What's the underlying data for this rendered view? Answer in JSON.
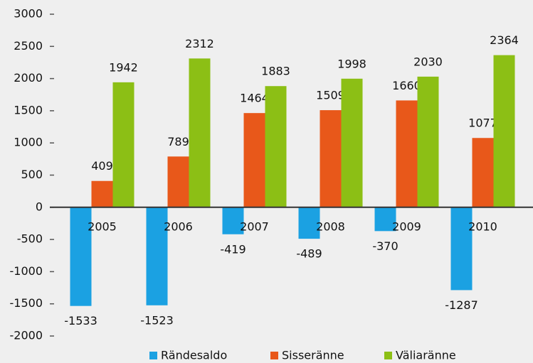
{
  "chart_data": {
    "type": "bar",
    "categories": [
      "2005",
      "2006",
      "2007",
      "2008",
      "2009",
      "2010"
    ],
    "series": [
      {
        "name": "Rändesaldo",
        "color": "#1ba1e2",
        "values": [
          -1533,
          -1523,
          -419,
          -489,
          -370,
          -1287
        ]
      },
      {
        "name": "Sisseränne",
        "color": "#e8581a",
        "values": [
          409,
          789,
          1464,
          1509,
          1660,
          1077
        ]
      },
      {
        "name": "Väliaränne",
        "color": "#8cbf15",
        "values": [
          1942,
          2312,
          1883,
          1998,
          2030,
          2364
        ]
      }
    ],
    "ylim": [
      -2000,
      3000
    ],
    "yticks": [
      -2000,
      -1500,
      -1000,
      -500,
      0,
      500,
      1000,
      1500,
      2000,
      2500,
      3000
    ],
    "legend": "bottom"
  }
}
